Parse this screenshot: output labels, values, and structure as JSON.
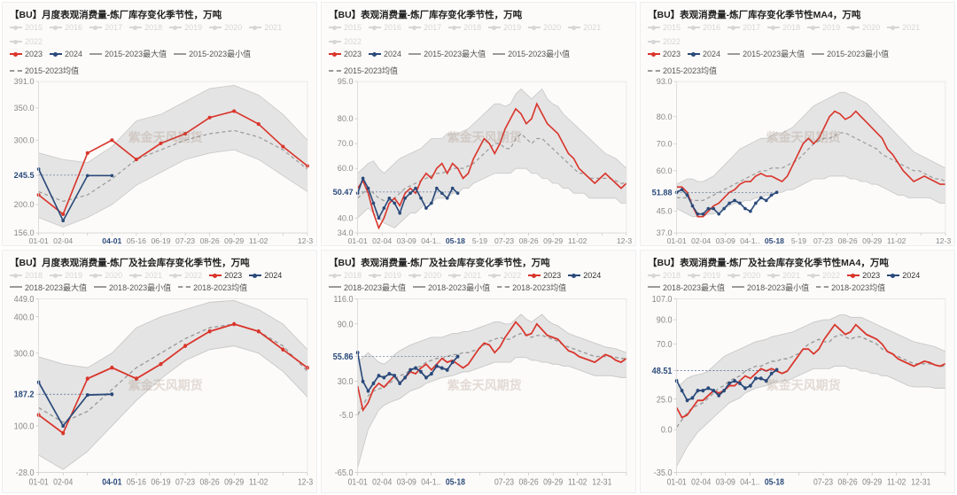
{
  "watermark": "紫金天风期货",
  "colors": {
    "red": "#d9352b",
    "navy": "#2b4a7a",
    "grey_dash": "#9a9a9a",
    "band": "#dcdcdc",
    "band_border": "#c8c8c8",
    "faded_legend": "#d6d6d6",
    "bg": "#fcfbfa",
    "axis": "#bbbbbb"
  },
  "monthly_xticks": [
    "01-01",
    "02-04",
    "",
    "04-01",
    "05-16",
    "06-19",
    "07-23",
    "08-26",
    "09-29",
    "11-02",
    "",
    "12-31"
  ],
  "weekly_xticks": [
    "01-01",
    "02-04",
    "03-09",
    "04-1..",
    "05-18",
    "5-19",
    "07-23",
    "08-26",
    "09-29",
    "11-02",
    "",
    "12-31"
  ],
  "weekly_xticks_b": [
    "01-01",
    "02-04",
    "03-09",
    "04-1..",
    "05-18",
    "",
    "07-23",
    "08-26",
    "09-29",
    "11-02",
    "12-31",
    ""
  ],
  "legend_faded": [
    "2015",
    "2016",
    "2017",
    "2018",
    "2019",
    "2020",
    "2021",
    "2022"
  ],
  "legend_faded_b": [
    "2018",
    "2019",
    "2020",
    "2021",
    "2022"
  ],
  "panels": [
    {
      "id": "p1",
      "title": "【BU】月度表观消费量-炼厂库存变化季节性，万吨",
      "legend_active": [
        "2023",
        "2024",
        "2015-2023最大值",
        "2015-2023最小值",
        "2015-2023均值"
      ],
      "x_mode": "monthly",
      "ylim": [
        156.0,
        391.0
      ],
      "yticks": [
        156.0,
        200.0,
        245.5,
        300.0,
        350.0,
        391.0
      ],
      "ytick_labels": [
        "156.0",
        "200.0",
        "245.5",
        "300.0",
        "350.0",
        "391.0"
      ],
      "marker_value": 245.5,
      "marker_idx": 3,
      "xmarker": "04-01",
      "band_max": [
        280,
        270,
        265,
        290,
        330,
        340,
        360,
        380,
        385,
        370,
        340,
        300
      ],
      "band_min": [
        180,
        165,
        180,
        200,
        230,
        250,
        270,
        280,
        285,
        270,
        245,
        220
      ],
      "mean": [
        220,
        205,
        215,
        240,
        270,
        285,
        300,
        310,
        315,
        305,
        285,
        255
      ],
      "red": [
        215,
        185,
        280,
        300,
        270,
        295,
        310,
        335,
        345,
        325,
        290,
        260
      ],
      "navy": [
        255,
        175,
        245,
        245
      ],
      "navy_start": 0
    },
    {
      "id": "p2",
      "title": "【BU】表观消费量-炼厂库存变化季节性，万吨",
      "legend_active": [
        "2023",
        "2024",
        "2015-2023最大值",
        "2015-2023最小值",
        "2015-2023均值"
      ],
      "x_mode": "weekly",
      "ylim": [
        34.0,
        95.0
      ],
      "yticks": [
        34.0,
        40.0,
        50.47,
        60.0,
        70.0,
        80.0,
        95.0
      ],
      "ytick_labels": [
        "34.0",
        "40.0",
        "50.47",
        "60.0",
        "70.0",
        "80.0",
        "95.0"
      ],
      "marker_value": 50.47,
      "marker_idx": 19,
      "xmarker": "05-18",
      "n": 52,
      "band_max": [
        58,
        60,
        62,
        63,
        60,
        58,
        60,
        62,
        64,
        65,
        66,
        67,
        68,
        70,
        72,
        72,
        72,
        74,
        74,
        74,
        75,
        76,
        78,
        80,
        82,
        84,
        86,
        86,
        85,
        86,
        90,
        92,
        90,
        88,
        90,
        92,
        88,
        86,
        85,
        82,
        80,
        78,
        76,
        74,
        72,
        70,
        68,
        66,
        65,
        64,
        62,
        60
      ],
      "band_min": [
        40,
        42,
        44,
        42,
        40,
        38,
        37,
        36,
        38,
        40,
        42,
        42,
        44,
        46,
        46,
        48,
        48,
        48,
        50,
        50,
        52,
        52,
        54,
        55,
        56,
        57,
        58,
        58,
        58,
        58,
        60,
        60,
        60,
        58,
        58,
        56,
        56,
        54,
        54,
        52,
        52,
        50,
        50,
        50,
        48,
        48,
        48,
        48,
        48,
        48,
        46,
        46
      ],
      "mean": [
        48,
        50,
        52,
        50,
        48,
        47,
        47,
        48,
        50,
        52,
        53,
        54,
        55,
        56,
        57,
        58,
        58,
        59,
        60,
        60,
        60,
        61,
        62,
        64,
        66,
        68,
        70,
        70,
        68,
        68,
        72,
        74,
        72,
        70,
        72,
        72,
        70,
        68,
        66,
        64,
        62,
        60,
        58,
        58,
        56,
        56,
        56,
        56,
        56,
        55,
        54,
        54
      ],
      "red": [
        52,
        55,
        50,
        42,
        36,
        40,
        46,
        48,
        45,
        50,
        52,
        50,
        55,
        58,
        56,
        60,
        62,
        58,
        62,
        60,
        56,
        58,
        64,
        68,
        72,
        70,
        66,
        70,
        76,
        80,
        84,
        82,
        78,
        80,
        86,
        82,
        78,
        76,
        74,
        70,
        66,
        64,
        60,
        58,
        56,
        54,
        56,
        58,
        56,
        54,
        52,
        54
      ],
      "navy": [
        50,
        56,
        52,
        46,
        40,
        44,
        48,
        46,
        42,
        48,
        50,
        52,
        48,
        44,
        46,
        52,
        50,
        48,
        52,
        50
      ],
      "navy_start": 0
    },
    {
      "id": "p3",
      "title": "【BU】表观消费量-炼厂库存变化季节性MA4，万吨",
      "legend_active": [
        "2023",
        "2024",
        "2015-2023最大值",
        "2015-2023最小值",
        "2015-2023均值"
      ],
      "x_mode": "weekly",
      "ylim": [
        37.0,
        93.0
      ],
      "yticks": [
        37.0,
        45.0,
        51.88,
        60.0,
        70.0,
        80.0,
        93.0
      ],
      "ytick_labels": [
        "37.0",
        "45.0",
        "51.88",
        "60.0",
        "70.0",
        "80.0",
        "93.0"
      ],
      "marker_value": 51.88,
      "marker_idx": 19,
      "xmarker": "05-18",
      "n": 52,
      "band_max": [
        55,
        56,
        57,
        57,
        56,
        56,
        57,
        58,
        60,
        62,
        64,
        66,
        68,
        69,
        70,
        71,
        72,
        72,
        73,
        74,
        74,
        75,
        76,
        78,
        80,
        82,
        84,
        85,
        86,
        87,
        88,
        89,
        89,
        88,
        87,
        86,
        85,
        83,
        81,
        79,
        77,
        75,
        73,
        71,
        69,
        67,
        66,
        65,
        64,
        63,
        62,
        61
      ],
      "band_min": [
        46,
        45,
        44,
        43,
        43,
        43,
        44,
        44,
        45,
        46,
        47,
        48,
        48,
        49,
        49,
        50,
        50,
        51,
        51,
        52,
        52,
        53,
        53,
        54,
        55,
        56,
        57,
        57,
        57,
        58,
        58,
        58,
        58,
        57,
        57,
        56,
        56,
        55,
        55,
        54,
        53,
        52,
        51,
        51,
        50,
        50,
        50,
        50,
        50,
        49,
        48,
        48
      ],
      "mean": [
        50,
        50,
        50,
        49,
        49,
        49,
        50,
        51,
        52,
        53,
        54,
        55,
        56,
        57,
        58,
        59,
        60,
        60,
        61,
        61,
        61,
        62,
        63,
        64,
        66,
        68,
        70,
        71,
        72,
        72,
        73,
        74,
        74,
        73,
        72,
        71,
        70,
        69,
        68,
        66,
        65,
        64,
        63,
        62,
        61,
        60,
        60,
        59,
        58,
        57,
        57,
        56
      ],
      "red": [
        54,
        54,
        52,
        47,
        43,
        43,
        45,
        47,
        48,
        50,
        52,
        53,
        55,
        56,
        56,
        58,
        59,
        58,
        58,
        57,
        56,
        58,
        62,
        66,
        70,
        72,
        70,
        72,
        76,
        80,
        82,
        81,
        79,
        80,
        82,
        80,
        78,
        76,
        74,
        72,
        68,
        66,
        63,
        60,
        58,
        56,
        57,
        58,
        57,
        56,
        55,
        55
      ],
      "navy": [
        52,
        53,
        51,
        47,
        44,
        44,
        46,
        46,
        44,
        46,
        48,
        49,
        48,
        46,
        45,
        48,
        50,
        49,
        51,
        52
      ],
      "navy_start": 0
    },
    {
      "id": "p4",
      "title": "【BU】月度表观消费量-炼厂及社会库存变化季节性，万吨",
      "legend_active": [
        "2023",
        "2024"
      ],
      "legend_extra": [
        "2018-2023最大值",
        "2018-2023最小值",
        "2018-2023均值"
      ],
      "x_mode": "monthly",
      "ylim": [
        -28.0,
        449.0
      ],
      "yticks": [
        -28.0,
        100.0,
        187.2,
        300.0,
        400.0,
        449.0
      ],
      "ytick_labels": [
        "-28.0",
        "100.0",
        "187.2",
        "300.0",
        "400.0",
        "449.0"
      ],
      "marker_value": 187.2,
      "marker_idx": 3,
      "xmarker": "04-01",
      "band_max": [
        290,
        270,
        260,
        300,
        370,
        400,
        420,
        440,
        445,
        420,
        380,
        310
      ],
      "band_min": [
        20,
        -20,
        30,
        100,
        170,
        230,
        280,
        310,
        320,
        300,
        250,
        180
      ],
      "mean": [
        150,
        110,
        140,
        200,
        260,
        300,
        340,
        370,
        380,
        360,
        320,
        250
      ],
      "red": [
        130,
        80,
        230,
        260,
        230,
        270,
        320,
        360,
        380,
        360,
        310,
        260
      ],
      "navy": [
        220,
        100,
        185,
        187
      ],
      "navy_start": 0
    },
    {
      "id": "p5",
      "title": "【BU】表观消费量-炼厂及社会库存变化季节性，万吨",
      "legend_active": [
        "2023",
        "2024"
      ],
      "legend_extra": [
        "2018-2023最大值",
        "2018-2023最小值",
        "2018-2023均值"
      ],
      "x_mode": "weekly_b",
      "ylim": [
        -65.0,
        116.0
      ],
      "yticks": [
        -65.0,
        -5.0,
        30.0,
        55.86,
        90.0,
        116.0
      ],
      "ytick_labels": [
        "-65.0",
        "-5.0",
        "30.0",
        "55.86",
        "90.0",
        "116.0"
      ],
      "marker_value": 55.86,
      "marker_idx": 19,
      "xmarker": "05-18",
      "n": 52,
      "band_max": [
        50,
        55,
        60,
        55,
        50,
        48,
        52,
        58,
        62,
        65,
        68,
        70,
        72,
        74,
        76,
        76,
        76,
        78,
        80,
        80,
        82,
        82,
        84,
        86,
        88,
        90,
        92,
        92,
        90,
        90,
        95,
        100,
        95,
        92,
        96,
        100,
        94,
        90,
        88,
        84,
        80,
        78,
        76,
        74,
        72,
        70,
        68,
        66,
        65,
        64,
        62,
        60
      ],
      "band_min": [
        -60,
        -40,
        -20,
        -10,
        0,
        5,
        8,
        10,
        12,
        16,
        20,
        22,
        24,
        28,
        30,
        32,
        34,
        35,
        36,
        38,
        40,
        40,
        42,
        44,
        46,
        48,
        50,
        50,
        50,
        50,
        55,
        55,
        55,
        52,
        52,
        50,
        50,
        48,
        48,
        46,
        46,
        44,
        42,
        40,
        38,
        36,
        36,
        36,
        36,
        35,
        34,
        34
      ],
      "mean": [
        -5,
        5,
        15,
        20,
        22,
        24,
        28,
        32,
        36,
        38,
        42,
        44,
        46,
        50,
        52,
        54,
        54,
        56,
        58,
        58,
        60,
        60,
        62,
        64,
        68,
        72,
        74,
        76,
        74,
        74,
        78,
        80,
        78,
        76,
        78,
        78,
        76,
        74,
        72,
        68,
        66,
        64,
        62,
        60,
        58,
        56,
        56,
        56,
        56,
        55,
        54,
        54
      ],
      "red": [
        25,
        0,
        8,
        22,
        28,
        24,
        30,
        36,
        28,
        34,
        40,
        38,
        44,
        48,
        42,
        48,
        54,
        50,
        52,
        48,
        44,
        48,
        56,
        64,
        70,
        68,
        60,
        66,
        76,
        84,
        92,
        86,
        78,
        80,
        90,
        84,
        78,
        76,
        74,
        68,
        62,
        60,
        56,
        54,
        52,
        50,
        54,
        58,
        56,
        52,
        50,
        54
      ],
      "navy": [
        60,
        30,
        20,
        28,
        36,
        34,
        38,
        36,
        28,
        34,
        42,
        44,
        40,
        34,
        38,
        46,
        44,
        42,
        50,
        56
      ],
      "navy_start": 0
    },
    {
      "id": "p6",
      "title": "【BU】表观消费量-炼厂及社会库存变化季节性MA4，万吨",
      "legend_active": [
        "2023",
        "2024"
      ],
      "legend_extra": [
        "2018-2023最大值",
        "2018-2023最小值",
        "2018-2023均值"
      ],
      "x_mode": "weekly_b",
      "ylim": [
        -35.0,
        107.0
      ],
      "yticks": [
        -35.0,
        0.0,
        25.0,
        48.51,
        70.0,
        90.0,
        107.0
      ],
      "ytick_labels": [
        "-35.0",
        "0.0",
        "25.0",
        "48.51",
        "70.0",
        "90.0",
        "107.0"
      ],
      "marker_value": 48.51,
      "marker_idx": 19,
      "xmarker": "05-18",
      "n": 52,
      "band_max": [
        35,
        38,
        42,
        44,
        45,
        46,
        48,
        52,
        56,
        60,
        62,
        64,
        66,
        68,
        70,
        72,
        73,
        74,
        76,
        77,
        78,
        79,
        80,
        82,
        84,
        86,
        88,
        89,
        90,
        90,
        92,
        94,
        94,
        92,
        92,
        92,
        90,
        88,
        86,
        84,
        82,
        80,
        78,
        76,
        74,
        72,
        71,
        70,
        69,
        68,
        66,
        64
      ],
      "band_min": [
        -30,
        -22,
        -14,
        -8,
        -2,
        2,
        6,
        10,
        14,
        18,
        22,
        24,
        26,
        30,
        32,
        34,
        35,
        36,
        38,
        39,
        40,
        40,
        42,
        44,
        46,
        48,
        50,
        50,
        50,
        50,
        52,
        52,
        52,
        50,
        50,
        48,
        48,
        46,
        46,
        44,
        44,
        42,
        40,
        38,
        36,
        35,
        35,
        35,
        35,
        34,
        34,
        34
      ],
      "mean": [
        2,
        8,
        14,
        18,
        20,
        22,
        26,
        30,
        34,
        36,
        40,
        42,
        44,
        48,
        50,
        52,
        52,
        54,
        56,
        56,
        58,
        58,
        60,
        62,
        66,
        70,
        72,
        74,
        72,
        72,
        76,
        78,
        76,
        74,
        76,
        76,
        74,
        72,
        70,
        66,
        64,
        62,
        60,
        58,
        56,
        54,
        54,
        54,
        54,
        53,
        52,
        52
      ],
      "red": [
        18,
        10,
        12,
        18,
        24,
        24,
        28,
        32,
        30,
        32,
        36,
        36,
        40,
        44,
        42,
        46,
        50,
        48,
        50,
        48,
        46,
        48,
        54,
        60,
        66,
        66,
        62,
        66,
        74,
        80,
        86,
        82,
        78,
        80,
        86,
        82,
        78,
        76,
        74,
        70,
        64,
        62,
        58,
        56,
        54,
        52,
        54,
        56,
        55,
        53,
        52,
        54
      ],
      "navy": [
        40,
        32,
        24,
        26,
        32,
        32,
        34,
        32,
        28,
        32,
        38,
        40,
        38,
        34,
        36,
        42,
        42,
        40,
        46,
        49
      ],
      "navy_start": 0
    }
  ]
}
